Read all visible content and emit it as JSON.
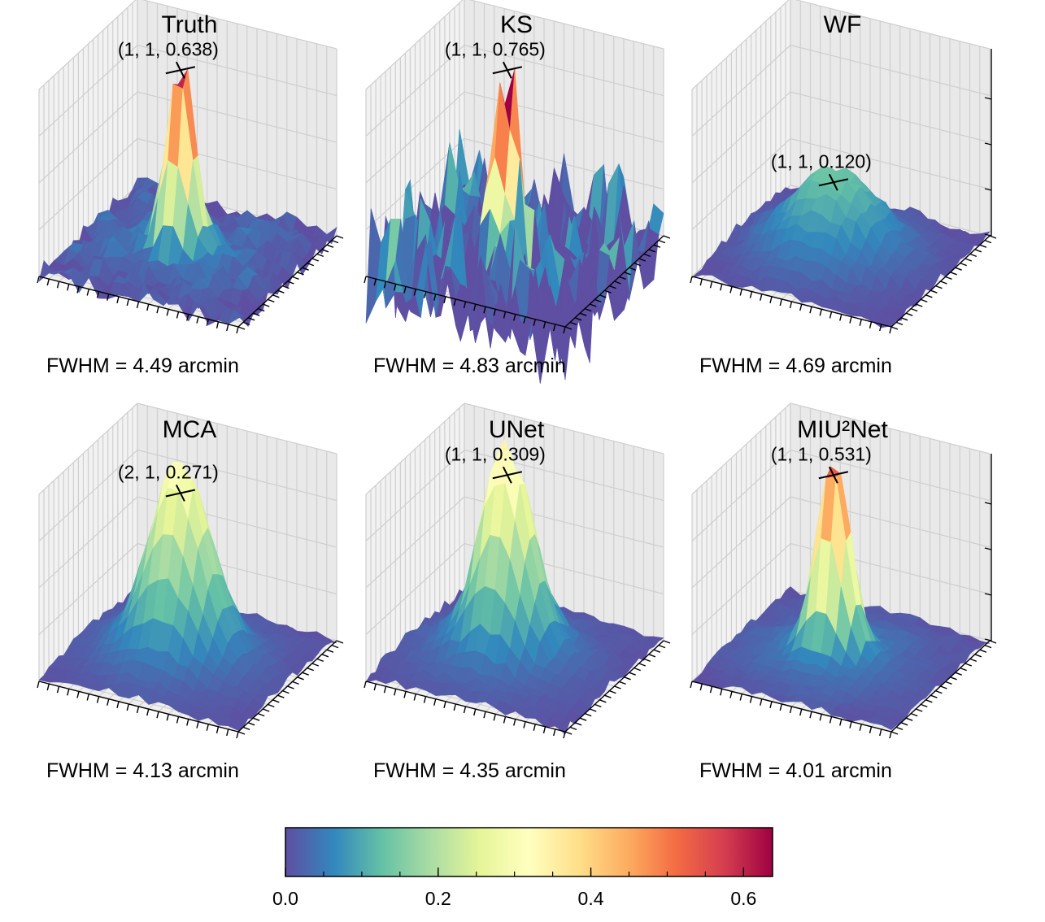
{
  "chart_data": [
    {
      "type": "surface3d",
      "title": "Truth",
      "peak": {
        "x": 1,
        "y": 1,
        "z": 0.638,
        "label": "(1, 1, 0.638)"
      },
      "footer": "FWHM = 4.49 arcmin",
      "fwhm_arcmin": 4.49,
      "zlim": [
        0,
        0.638
      ],
      "grid": true
    },
    {
      "type": "surface3d",
      "title": "KS",
      "peak": {
        "x": 1,
        "y": 1,
        "z": 0.765,
        "label": "(1, 1, 0.765)"
      },
      "footer": "FWHM = 4.83 arcmin",
      "fwhm_arcmin": 4.83,
      "zlim": [
        0,
        0.765
      ],
      "grid": true
    },
    {
      "type": "surface3d",
      "title": "WF",
      "peak": {
        "x": 1,
        "y": 1,
        "z": 0.12,
        "label": "(1, 1, 0.120)"
      },
      "footer": "FWHM = 4.69 arcmin",
      "fwhm_arcmin": 4.69,
      "zlim": [
        0,
        0.12
      ],
      "grid": true
    },
    {
      "type": "surface3d",
      "title": "MCA",
      "peak": {
        "x": 2,
        "y": 1,
        "z": 0.271,
        "label": "(2, 1, 0.271)"
      },
      "footer": "FWHM = 4.13 arcmin",
      "fwhm_arcmin": 4.13,
      "zlim": [
        0,
        0.271
      ],
      "grid": true
    },
    {
      "type": "surface3d",
      "title": "UNet",
      "peak": {
        "x": 1,
        "y": 1,
        "z": 0.309,
        "label": "(1, 1, 0.309)"
      },
      "footer": "FWHM = 4.35 arcmin",
      "fwhm_arcmin": 4.35,
      "zlim": [
        0,
        0.309
      ],
      "grid": true
    },
    {
      "type": "surface3d",
      "title": "MIU²Net",
      "peak": {
        "x": 1,
        "y": 1,
        "z": 0.531,
        "label": "(1, 1, 0.531)"
      },
      "footer": "FWHM = 4.01 arcmin",
      "fwhm_arcmin": 4.01,
      "zlim": [
        0,
        0.531
      ],
      "grid": true
    }
  ],
  "colorbar": {
    "colormap": "Spectral_r",
    "range": [
      0,
      0.638
    ],
    "ticks": [
      0.0,
      0.2,
      0.4,
      0.6
    ],
    "tick_labels": [
      "0.0",
      "0.2",
      "0.4",
      "0.6"
    ],
    "colors": [
      "#5e4fa2",
      "#3288bd",
      "#66c2a5",
      "#abdda4",
      "#e6f598",
      "#ffffbf",
      "#fee08b",
      "#fdae61",
      "#f46d43",
      "#d53e4f",
      "#9e0142"
    ]
  }
}
